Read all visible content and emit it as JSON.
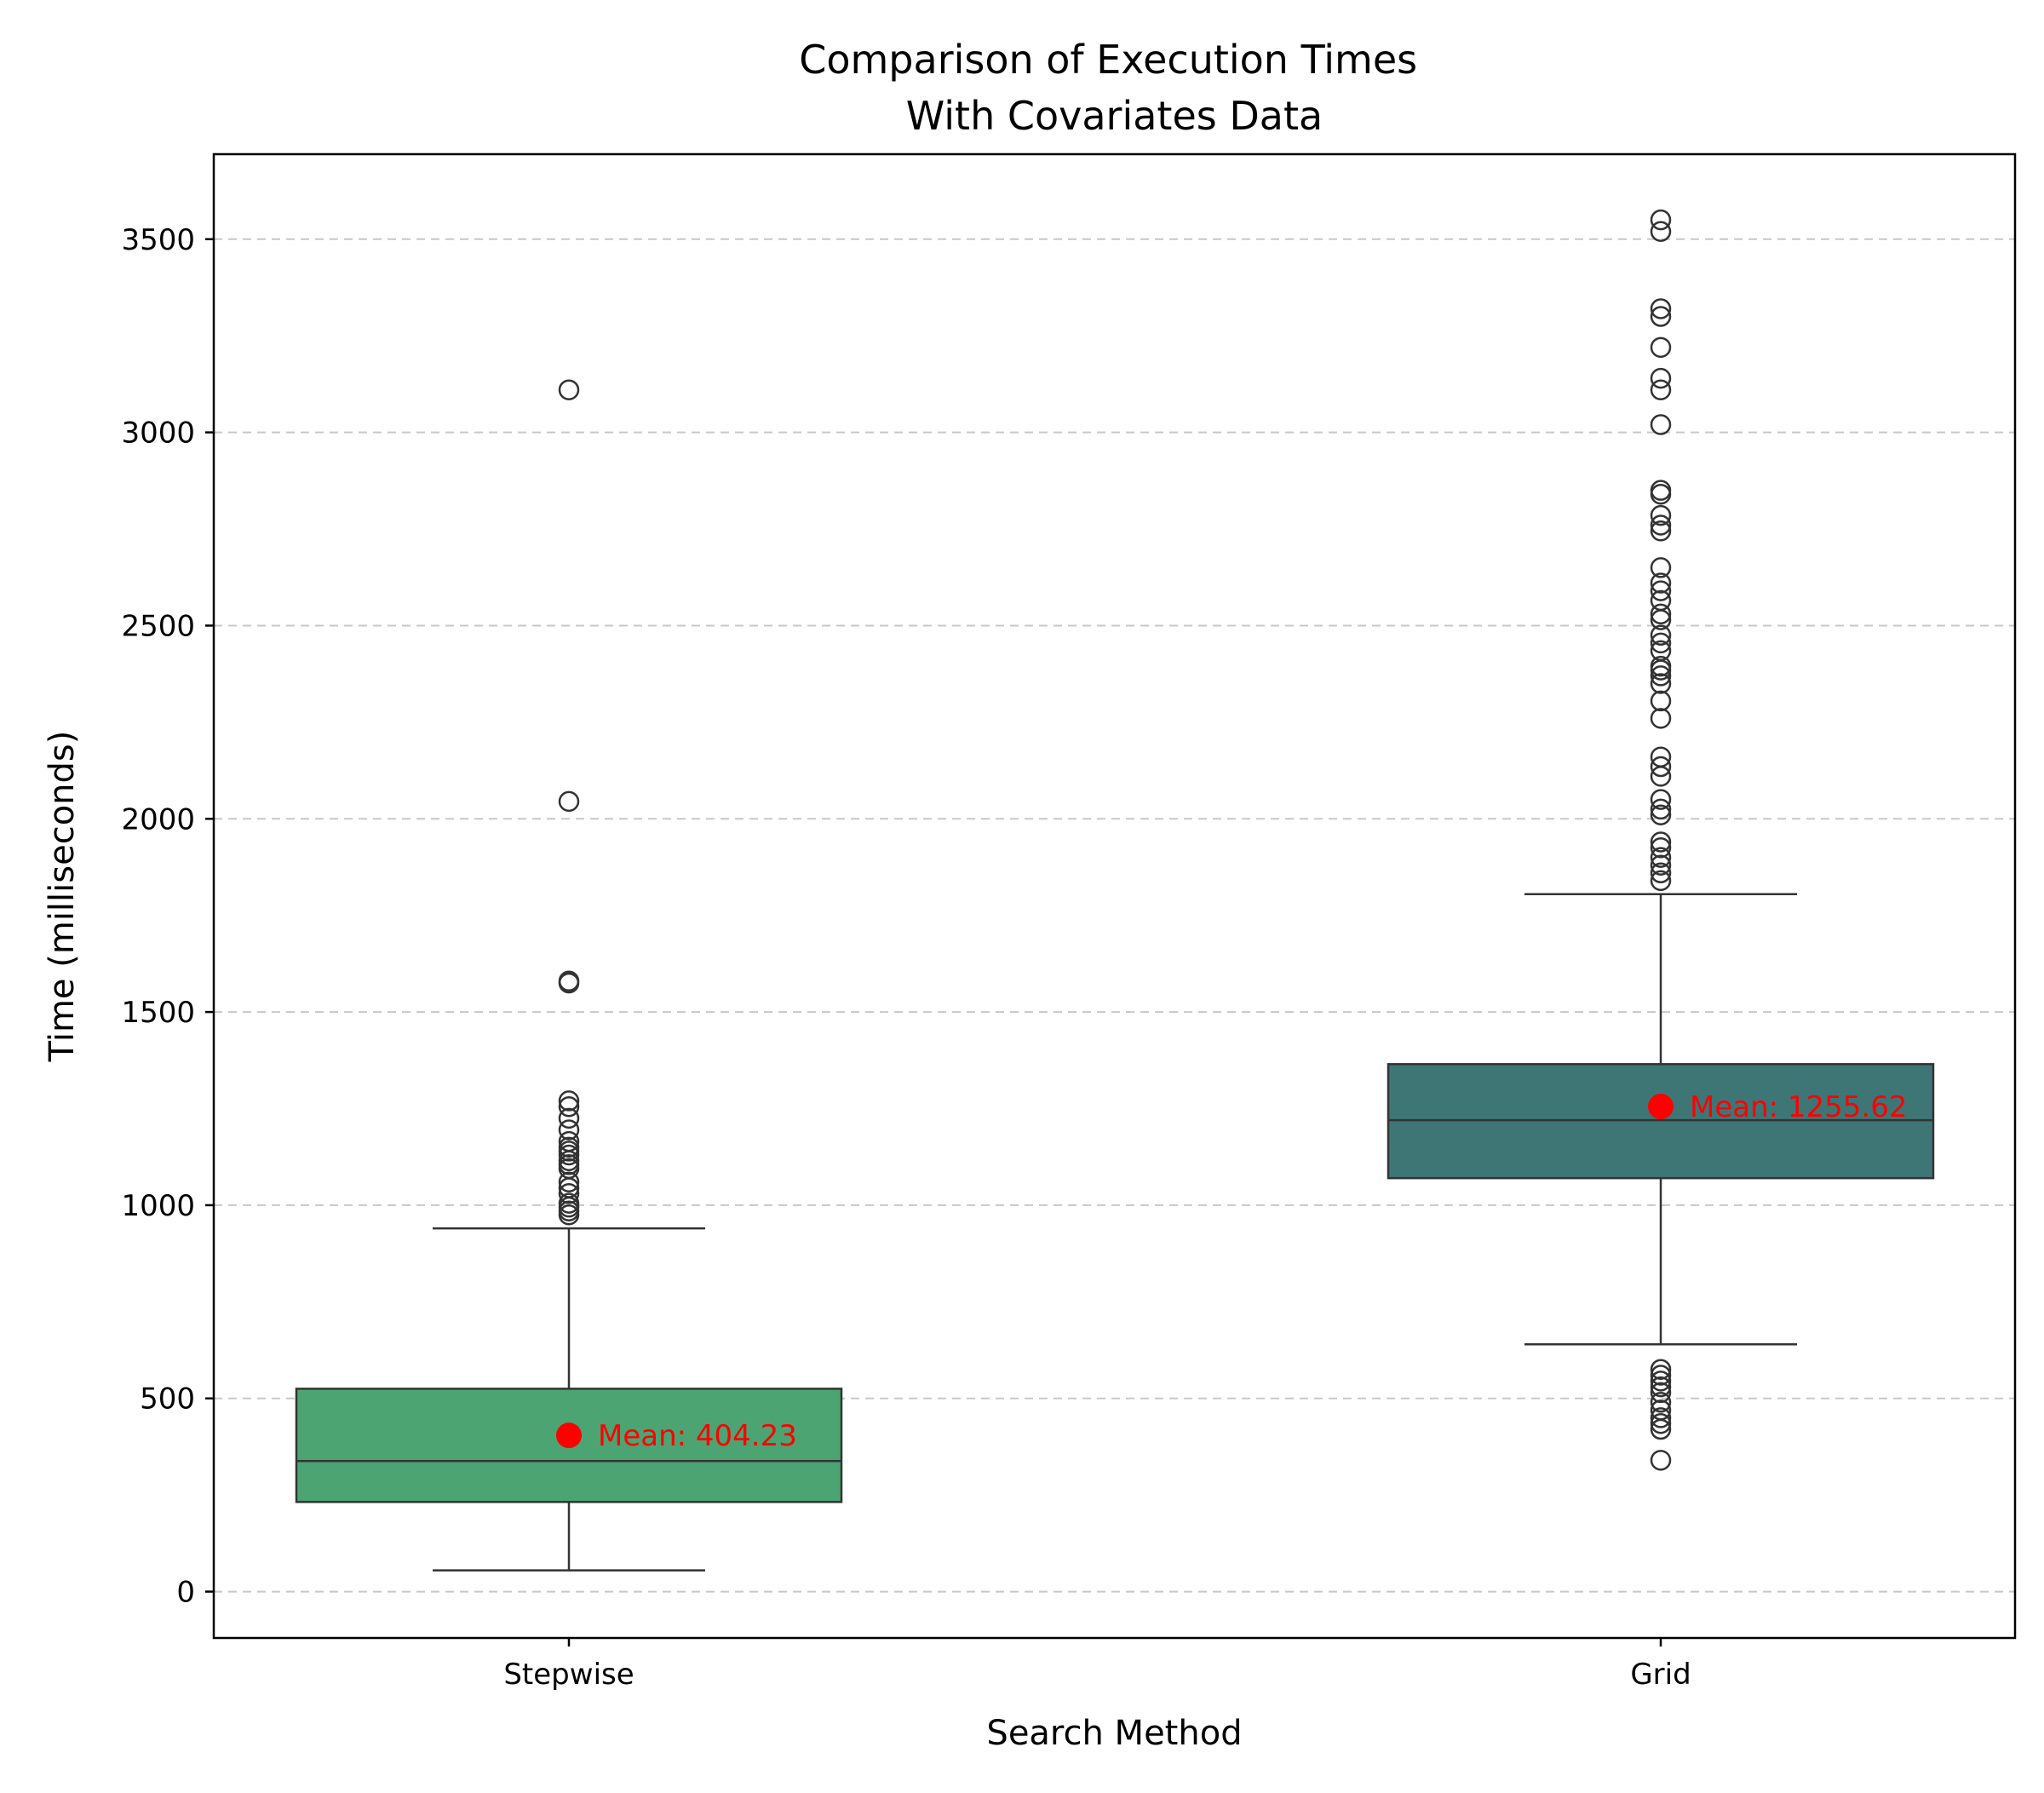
{
  "chart_data": {
    "type": "box",
    "title": "Comparison of Execution Times\nWith Covariates Data",
    "title_lines": [
      "Comparison of Execution Times",
      "With Covariates Data"
    ],
    "xlabel": "Search Method",
    "ylabel": "Time (milliseconds)",
    "ylim": [
      -120,
      3720
    ],
    "yticks": [
      0,
      500,
      1000,
      1500,
      2000,
      2500,
      3000,
      3500
    ],
    "grid": "y-dashed",
    "categories": [
      "Stepwise",
      "Grid"
    ],
    "boxes": [
      {
        "category": "Stepwise",
        "color": "#4ca472",
        "whisker_low": 55,
        "q1": 232,
        "median": 338,
        "q3": 525,
        "whisker_high": 940,
        "mean": 404.23,
        "mean_label": "Mean: 404.23",
        "outliers": [
          975,
          985,
          995,
          1005,
          1030,
          1045,
          1060,
          1095,
          1105,
          1115,
          1130,
          1140,
          1150,
          1165,
          1195,
          1225,
          1255,
          1270,
          1575,
          1580,
          2045,
          3110
        ]
      },
      {
        "category": "Grid",
        "color": "#3e7676",
        "whisker_low": 640,
        "q1": 1070,
        "median": 1220,
        "q3": 1365,
        "whisker_high": 1805,
        "mean": 1255.62,
        "mean_label": "Mean: 1255.62",
        "outliers": [
          340,
          420,
          435,
          450,
          470,
          490,
          515,
          530,
          545,
          560,
          575,
          1840,
          1860,
          1880,
          1900,
          1925,
          1940,
          2010,
          2025,
          2050,
          2110,
          2135,
          2160,
          2260,
          2305,
          2350,
          2370,
          2385,
          2395,
          2435,
          2455,
          2475,
          2515,
          2530,
          2565,
          2590,
          2610,
          2650,
          2745,
          2760,
          2785,
          2840,
          2850,
          3020,
          3110,
          3140,
          3220,
          3300,
          3320,
          3520,
          3550
        ]
      }
    ],
    "colors": {
      "mean_marker": "#ff0000",
      "box_edge": "#333333",
      "grid": "#c8c8c8"
    }
  }
}
